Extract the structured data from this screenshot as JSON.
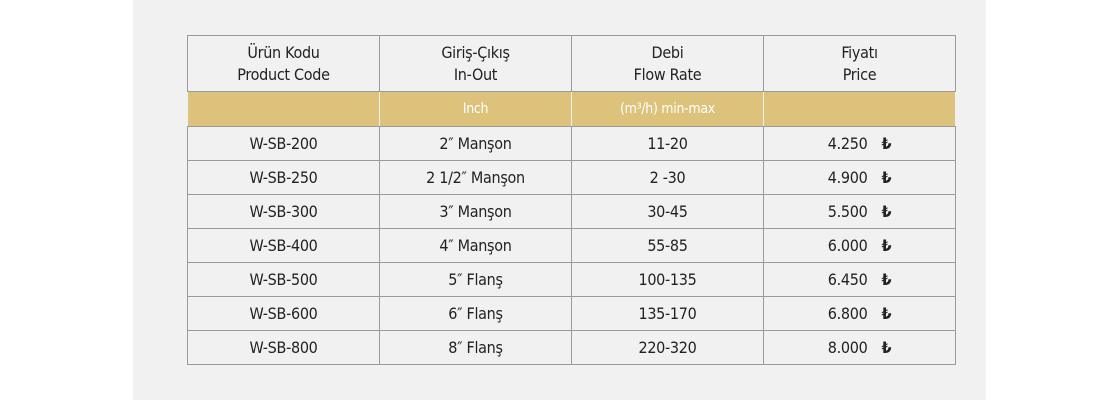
{
  "headers": [
    {
      "tr": "Ürün Kodu",
      "en": "Product Code"
    },
    {
      "tr": "Giriş-Çıkış",
      "en": "In-Out"
    },
    {
      "tr": "Debi",
      "en": "Flow Rate"
    },
    {
      "tr": "Fiyatı",
      "en": "Price"
    }
  ],
  "units": [
    "",
    "Inch",
    "(m³/h) min-max",
    ""
  ],
  "currency_symbol": "₺",
  "gold_color": "#dcc27a",
  "rows": [
    {
      "code": "W-SB-200",
      "inout": "2″ Manşon",
      "flow": "11-20",
      "price": "4.250"
    },
    {
      "code": "W-SB-250",
      "inout": "2 1/2″ Manşon",
      "flow": "2 -30",
      "price": "4.900"
    },
    {
      "code": "W-SB-300",
      "inout": "3″ Manşon",
      "flow": "30-45",
      "price": "5.500"
    },
    {
      "code": "W-SB-400",
      "inout": "4″ Manşon",
      "flow": "55-85",
      "price": "6.000"
    },
    {
      "code": "W-SB-500",
      "inout": "5″ Flanş",
      "flow": "100-135",
      "price": "6.450"
    },
    {
      "code": "W-SB-600",
      "inout": "6″ Flanş",
      "flow": "135-170",
      "price": "6.800"
    },
    {
      "code": "W-SB-800",
      "inout": "8″ Flanş",
      "flow": "220-320",
      "price": "8.000"
    }
  ]
}
